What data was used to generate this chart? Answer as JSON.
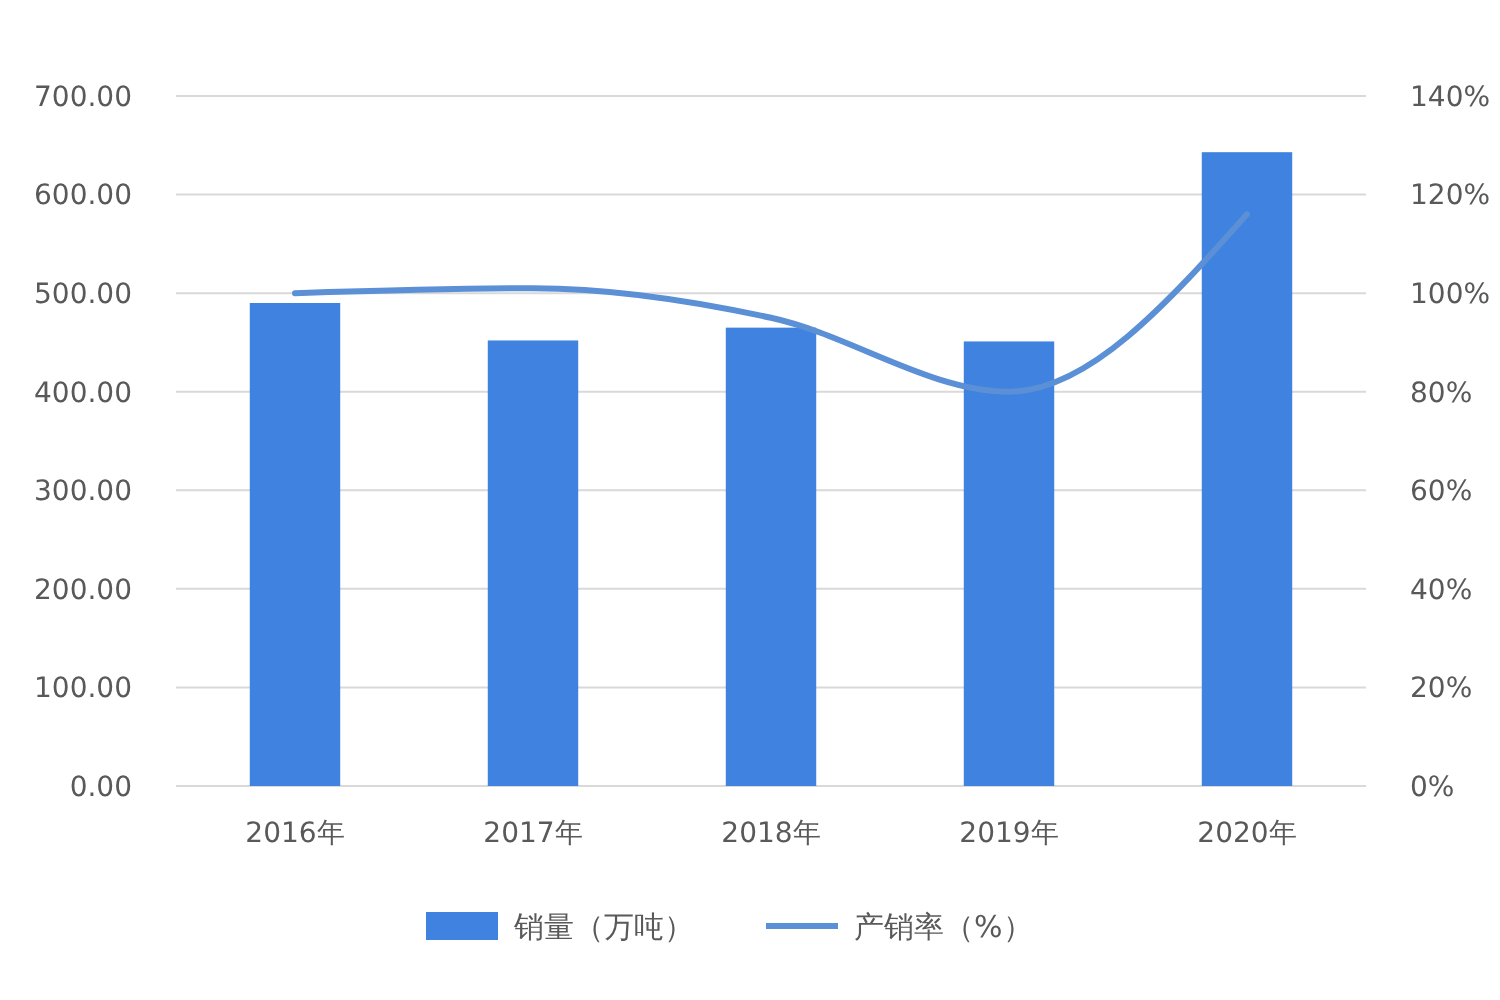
{
  "chart_data": {
    "type": "bar",
    "categories": [
      "2016年",
      "2017年",
      "2018年",
      "2019年",
      "2020年"
    ],
    "series": [
      {
        "name": "销量（万吨）",
        "color": "#3f82e0",
        "values": [
          490,
          452,
          465,
          451,
          643
        ]
      },
      {
        "name": "产销率（%）",
        "type": "line",
        "axis": "y2",
        "color": "#5b8fd6",
        "values": [
          100,
          101,
          95,
          80,
          116
        ]
      }
    ],
    "ylim": [
      0,
      700
    ],
    "yticks": [
      {
        "value": 0,
        "label": "0.00"
      },
      {
        "value": 100,
        "label": "100.00"
      },
      {
        "value": 200,
        "label": "200.00"
      },
      {
        "value": 300,
        "label": "300.00"
      },
      {
        "value": 400,
        "label": "400.00"
      },
      {
        "value": 500,
        "label": "500.00"
      },
      {
        "value": 600,
        "label": "600.00"
      },
      {
        "value": 700,
        "label": "700.00"
      }
    ],
    "y2lim": [
      0,
      140
    ],
    "y2ticks": [
      {
        "value": 0,
        "label": "0%"
      },
      {
        "value": 20,
        "label": "20%"
      },
      {
        "value": 40,
        "label": "40%"
      },
      {
        "value": 60,
        "label": "60%"
      },
      {
        "value": 80,
        "label": "80%"
      },
      {
        "value": 100,
        "label": "100%"
      },
      {
        "value": 120,
        "label": "120%"
      },
      {
        "value": 140,
        "label": "140%"
      }
    ],
    "grid": "y",
    "legend": "bottom",
    "marker": "none",
    "line_style": "solid"
  }
}
